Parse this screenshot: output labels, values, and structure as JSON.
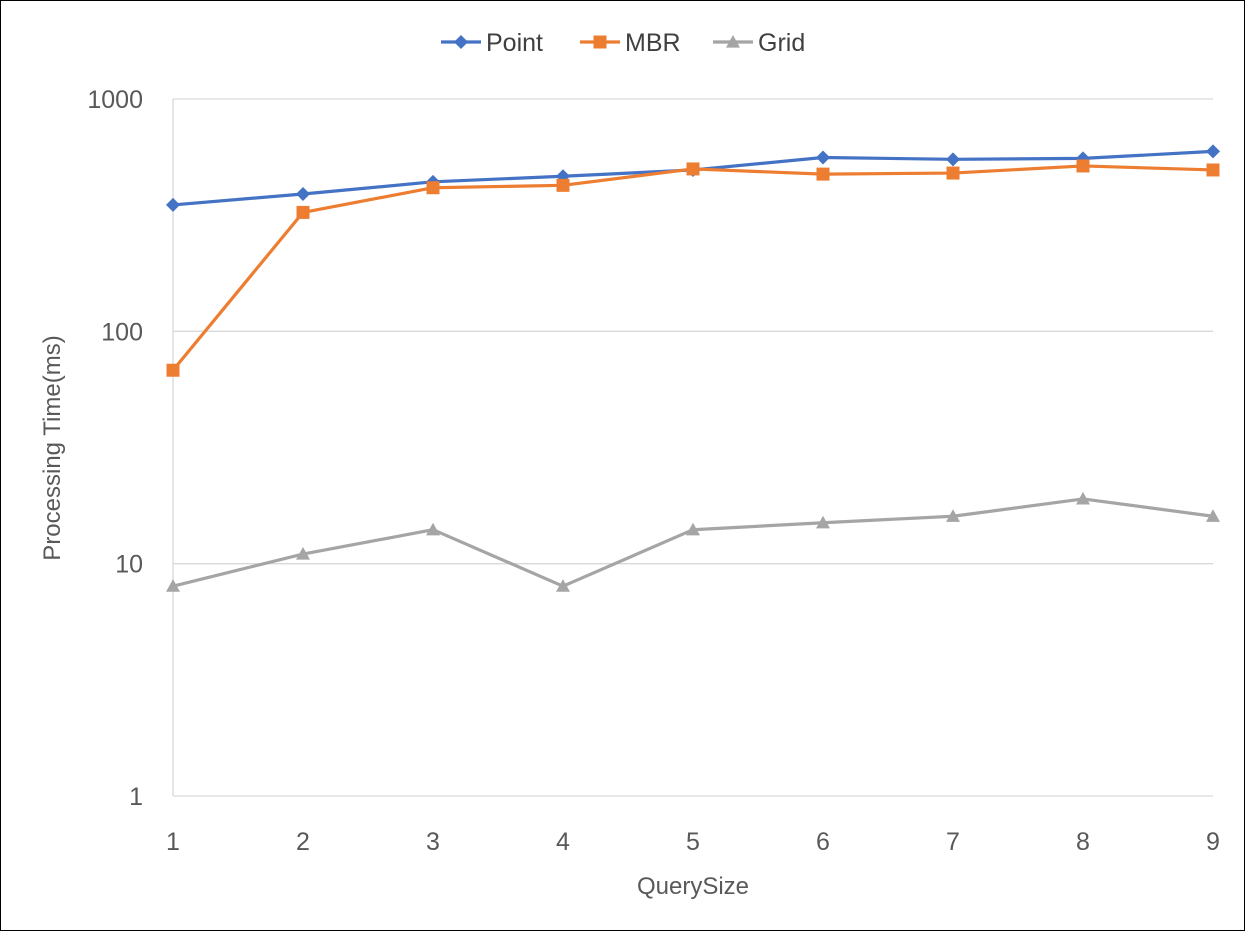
{
  "chart_data": {
    "type": "line",
    "title": "",
    "xlabel": "QuerySize",
    "ylabel": "Processing Time(ms)",
    "y_scale": "log",
    "ylim": [
      1,
      1000
    ],
    "y_ticks": [
      1,
      10,
      100,
      1000
    ],
    "y_tick_labels": [
      "1",
      "10",
      "100",
      "1000"
    ],
    "x": [
      1,
      2,
      3,
      4,
      5,
      6,
      7,
      8,
      9
    ],
    "x_tick_labels": [
      "1",
      "2",
      "3",
      "4",
      "5",
      "6",
      "7",
      "8",
      "9"
    ],
    "grid": "horizontal",
    "legend": "top-center",
    "series": [
      {
        "name": "Point",
        "color": "#4472C4",
        "marker": "diamond",
        "values": [
          350,
          390,
          440,
          465,
          495,
          560,
          550,
          555,
          595
        ]
      },
      {
        "name": "MBR",
        "color": "#ED7D31",
        "marker": "square",
        "values": [
          68,
          325,
          415,
          425,
          500,
          475,
          480,
          515,
          495
        ]
      },
      {
        "name": "Grid",
        "color": "#A5A5A5",
        "marker": "triangle",
        "values": [
          8,
          11,
          14,
          8,
          14,
          15,
          16,
          19,
          16
        ]
      }
    ]
  }
}
